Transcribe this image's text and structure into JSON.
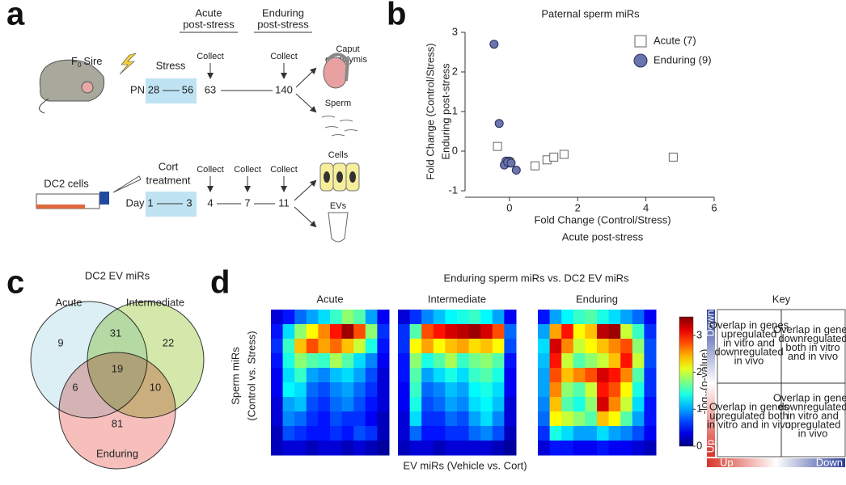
{
  "panel_labels": [
    "a",
    "b",
    "c",
    "d"
  ],
  "diagram": {
    "acute_header": [
      "Acute",
      "post-stress"
    ],
    "enduring_header": [
      "Enduring",
      "post-stress"
    ],
    "sire": {
      "f": "F",
      "sub": "0",
      "rest": "Sire"
    },
    "stress": "Stress",
    "collect": "Collect",
    "pn": "PN",
    "pn_days": [
      "28",
      "56",
      "63",
      "140"
    ],
    "caput": [
      "Caput",
      "epididymis"
    ],
    "sperm": "Sperm",
    "dc2_cells": "DC2 cells",
    "cort": [
      "Cort",
      "treatment"
    ],
    "day": "Day",
    "days": [
      "1",
      "3",
      "4",
      "7",
      "11"
    ],
    "cells": "Cells",
    "evs": "EVs"
  },
  "chart_data": [
    {
      "type": "scatter",
      "title": "Paternal sperm miRs",
      "xlabel": [
        "Fold Change (Control/Stress)",
        "Acute post-stress"
      ],
      "ylabel": [
        "Fold Change (Control/Stress)",
        "Enduring post-stress"
      ],
      "xlim": [
        -1.3,
        6
      ],
      "ylim": [
        -1,
        3
      ],
      "xticks": [
        0,
        2,
        4,
        6
      ],
      "yticks": [
        -1,
        0,
        1,
        2,
        3
      ],
      "series": [
        {
          "name": "Acute (7)",
          "color": "#ffffff",
          "marker": "square",
          "x": [
            -0.35,
            0.0,
            0.75,
            1.1,
            1.3,
            1.6,
            4.8
          ],
          "values": [
            0.12,
            -0.28,
            -0.37,
            -0.22,
            -0.15,
            -0.08,
            -0.15
          ]
        },
        {
          "name": "Enduring (9)",
          "color": "#6a74ad",
          "marker": "circle",
          "x": [
            -0.45,
            -0.3,
            -0.1,
            -0.05,
            0.0,
            -0.15,
            0.2,
            -0.05,
            0.05
          ],
          "values": [
            2.7,
            0.7,
            -0.25,
            -0.3,
            -0.25,
            -0.35,
            -0.48,
            -0.28,
            -0.3
          ]
        }
      ]
    },
    {
      "type": "heatmap",
      "title": "Acute",
      "clim": [
        0,
        3.5
      ],
      "colormap": "jet",
      "values": [
        [
          0.3,
          0.5,
          0.8,
          1.0,
          1.2,
          1.5,
          1.8,
          1.6,
          1.0,
          0.4
        ],
        [
          0.5,
          1.2,
          1.8,
          2.2,
          2.6,
          3.0,
          3.4,
          2.8,
          1.8,
          0.6
        ],
        [
          0.6,
          1.5,
          2.4,
          2.8,
          2.5,
          2.7,
          2.4,
          2.0,
          1.4,
          0.5
        ],
        [
          0.5,
          1.4,
          1.8,
          1.6,
          1.5,
          1.9,
          1.6,
          1.2,
          0.9,
          0.4
        ],
        [
          0.4,
          1.2,
          1.5,
          1.0,
          0.9,
          1.1,
          1.2,
          1.0,
          0.7,
          0.3
        ],
        [
          0.4,
          1.3,
          1.2,
          0.8,
          0.7,
          0.9,
          1.0,
          0.8,
          0.6,
          0.3
        ],
        [
          0.3,
          1.0,
          1.1,
          0.7,
          0.6,
          0.8,
          0.9,
          0.7,
          0.5,
          0.3
        ],
        [
          0.3,
          0.9,
          0.8,
          0.6,
          0.5,
          0.7,
          0.6,
          0.6,
          0.4,
          0.2
        ],
        [
          0.2,
          0.7,
          0.6,
          0.5,
          0.5,
          0.6,
          0.5,
          0.7,
          0.6,
          0.2
        ],
        [
          0.2,
          0.3,
          0.3,
          0.2,
          0.3,
          0.3,
          0.2,
          0.3,
          0.2,
          0.1
        ]
      ]
    },
    {
      "type": "heatmap",
      "title": "Intermediate",
      "clim": [
        0,
        3.5
      ],
      "colormap": "jet",
      "values": [
        [
          0.3,
          0.6,
          0.9,
          1.1,
          1.3,
          1.4,
          1.5,
          1.3,
          1.0,
          0.4
        ],
        [
          0.6,
          1.6,
          2.8,
          3.0,
          3.2,
          3.3,
          3.4,
          3.2,
          2.8,
          0.8
        ],
        [
          0.6,
          2.2,
          2.5,
          2.2,
          2.4,
          2.5,
          2.3,
          2.4,
          2.2,
          0.7
        ],
        [
          0.5,
          1.8,
          1.4,
          1.6,
          1.9,
          1.5,
          1.7,
          1.8,
          1.6,
          0.5
        ],
        [
          0.5,
          1.6,
          1.0,
          1.2,
          1.4,
          1.2,
          1.5,
          1.6,
          1.4,
          0.4
        ],
        [
          0.4,
          1.5,
          0.8,
          0.9,
          1.1,
          1.0,
          1.3,
          1.4,
          1.2,
          0.4
        ],
        [
          0.4,
          1.4,
          0.7,
          0.8,
          1.0,
          0.9,
          1.2,
          1.3,
          1.1,
          0.3
        ],
        [
          0.3,
          1.2,
          0.6,
          0.6,
          0.8,
          0.7,
          1.0,
          1.2,
          0.9,
          0.3
        ],
        [
          0.3,
          0.8,
          0.5,
          0.5,
          0.6,
          0.6,
          0.8,
          0.9,
          0.7,
          0.2
        ],
        [
          0.2,
          0.3,
          0.3,
          0.2,
          0.3,
          0.3,
          0.3,
          0.3,
          0.2,
          0.1
        ]
      ]
    },
    {
      "type": "heatmap",
      "title": "Enduring",
      "clim": [
        0,
        3.5
      ],
      "colormap": "jet",
      "values": [
        [
          0.5,
          1.0,
          1.3,
          1.5,
          1.6,
          1.4,
          1.2,
          1.0,
          0.8,
          0.4
        ],
        [
          1.0,
          2.5,
          3.0,
          2.2,
          2.4,
          3.3,
          3.4,
          2.0,
          1.5,
          0.6
        ],
        [
          1.2,
          3.2,
          2.6,
          2.0,
          2.2,
          2.4,
          2.6,
          2.8,
          1.8,
          0.7
        ],
        [
          1.1,
          3.0,
          2.0,
          1.6,
          1.8,
          2.0,
          2.4,
          3.0,
          2.0,
          0.7
        ],
        [
          1.0,
          2.8,
          2.4,
          2.6,
          2.8,
          3.2,
          3.0,
          2.6,
          1.6,
          0.6
        ],
        [
          1.0,
          2.6,
          1.8,
          1.6,
          2.0,
          3.0,
          2.8,
          2.2,
          1.4,
          0.6
        ],
        [
          0.9,
          2.4,
          1.6,
          1.4,
          1.8,
          3.2,
          2.6,
          2.0,
          1.2,
          0.5
        ],
        [
          0.8,
          2.2,
          2.0,
          1.8,
          1.6,
          2.4,
          2.2,
          1.6,
          1.0,
          0.5
        ],
        [
          0.6,
          1.4,
          1.2,
          1.0,
          1.0,
          1.2,
          1.0,
          0.9,
          0.7,
          0.4
        ],
        [
          0.3,
          0.5,
          0.5,
          0.4,
          0.4,
          0.5,
          0.4,
          0.4,
          0.3,
          0.2
        ]
      ]
    }
  ],
  "venn": {
    "title": "DC2 EV miRs",
    "sets": [
      "Acute",
      "Intermediate",
      "Enduring"
    ],
    "regions": {
      "acute_only": 9,
      "acute_intermediate": 31,
      "intermediate_only": 22,
      "all": 19,
      "acute_enduring": 6,
      "intermediate_enduring": 10,
      "enduring_only": 81
    }
  },
  "heatmap_panel": {
    "title": "Enduring sperm miRs vs. DC2 EV miRs",
    "ylabel": [
      "Sperm miRs",
      "(Control vs. Stress)"
    ],
    "xlabel": "EV miRs (Vehicle vs. Cort)",
    "colorbar_label": {
      "pre": "-log",
      "sub": "10",
      "post": "(p-value)"
    },
    "colorbar_ticks": [
      0,
      1,
      2,
      3
    ]
  },
  "key": {
    "title": "Key",
    "cells": [
      [
        "Overlap in genes",
        "upregulated",
        "in vitro and",
        "downregulated",
        "in vivo"
      ],
      [
        "Overlap in genes",
        "downregulated",
        "both in vitro",
        "and in vivo"
      ],
      [
        "Overlap in genes",
        "upregulated both",
        "in vitro and in vivo"
      ],
      [
        "Overlap in genes",
        "downregulated",
        "in vitro and",
        "upregulated",
        "in vivo"
      ]
    ],
    "vertical": [
      "Down",
      "Up"
    ],
    "horizontal": [
      "Up",
      "Down"
    ]
  }
}
